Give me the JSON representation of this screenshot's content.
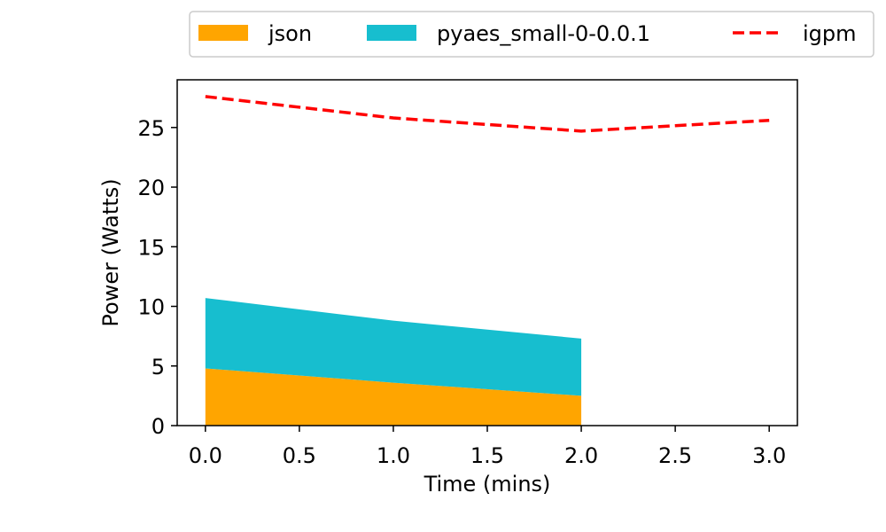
{
  "chart_data": {
    "type": "area",
    "title": "",
    "xlabel": "Time (mins)",
    "ylabel": "Power (Watts)",
    "xlim": [
      -0.15,
      3.15
    ],
    "ylim": [
      0,
      29
    ],
    "xticks": [
      "0.0",
      "0.5",
      "1.0",
      "1.5",
      "2.0",
      "2.5",
      "3.0"
    ],
    "yticks": [
      "0",
      "5",
      "10",
      "15",
      "20",
      "25"
    ],
    "grid": false,
    "legend_position": "top-center, outside plot",
    "stacked_series": [
      {
        "name": "json",
        "kind": "area",
        "color": "#FFA500",
        "x": [
          0,
          1,
          2
        ],
        "values": [
          4.8,
          3.6,
          2.5
        ]
      },
      {
        "name": "pyaes_small-0-0.0.1",
        "kind": "area",
        "color": "#17BECF",
        "x": [
          0,
          1,
          2
        ],
        "values": [
          5.9,
          5.2,
          4.8
        ]
      }
    ],
    "line_series": [
      {
        "name": "igpm",
        "kind": "line",
        "style": "dashed",
        "color": "#FF0000",
        "x": [
          0,
          1,
          2,
          3
        ],
        "values": [
          27.6,
          25.8,
          24.7,
          25.6
        ]
      }
    ]
  }
}
